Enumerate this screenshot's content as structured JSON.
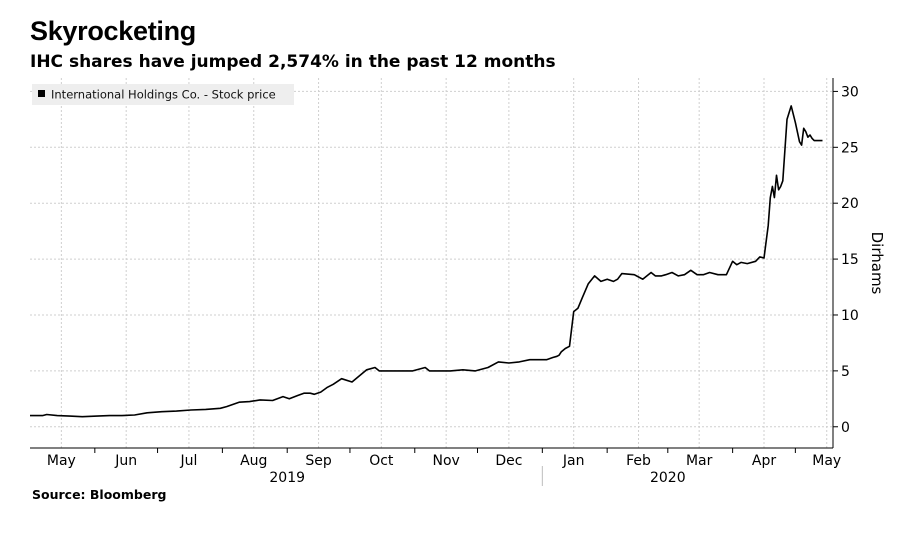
{
  "title": "Skyrocketing",
  "subtitle": "IHC shares have jumped 2,574% in the past 12 months",
  "source": "Source: Bloomberg",
  "chart_data": {
    "type": "line",
    "title": "Skyrocketing",
    "subtitle": "IHC shares have jumped 2,574% in the past 12 months",
    "ylabel": "Dirhams",
    "ylim": [
      -1.9,
      31.2
    ],
    "yticks": [
      0,
      5,
      10,
      15,
      20,
      25,
      30
    ],
    "grid": true,
    "legend": {
      "placement": "top-left",
      "entries": [
        "International Holdings Co. - Stock price"
      ]
    },
    "x_month_labels": [
      "May",
      "Jun",
      "Jul",
      "Aug",
      "Sep",
      "Oct",
      "Nov",
      "Dec",
      "Jan",
      "Feb",
      "Mar",
      "Apr",
      "May"
    ],
    "x_month_dates": [
      "2019-05-16",
      "2019-06-16",
      "2019-07-16",
      "2019-08-16",
      "2019-09-16",
      "2019-10-16",
      "2019-11-16",
      "2019-12-16",
      "2020-01-16",
      "2020-02-16",
      "2020-03-16",
      "2020-04-16",
      "2020-05-16"
    ],
    "year_labels": [
      "2019",
      "2020"
    ],
    "series": [
      {
        "name": "International Holdings Co. - Stock price",
        "x": [
          "2019-05-01",
          "2019-05-07",
          "2019-05-09",
          "2019-05-14",
          "2019-05-20",
          "2019-05-26",
          "2019-06-02",
          "2019-06-08",
          "2019-06-14",
          "2019-06-20",
          "2019-06-26",
          "2019-07-03",
          "2019-07-10",
          "2019-07-17",
          "2019-07-24",
          "2019-07-31",
          "2019-08-03",
          "2019-08-09",
          "2019-08-14",
          "2019-08-19",
          "2019-08-25",
          "2019-08-30",
          "2019-09-02",
          "2019-09-06",
          "2019-09-09",
          "2019-09-12",
          "2019-09-14",
          "2019-09-17",
          "2019-09-20",
          "2019-09-23",
          "2019-09-27",
          "2019-10-02",
          "2019-10-09",
          "2019-10-13",
          "2019-10-15",
          "2019-10-20",
          "2019-10-25",
          "2019-10-31",
          "2019-11-06",
          "2019-11-08",
          "2019-11-11",
          "2019-11-13",
          "2019-11-18",
          "2019-11-24",
          "2019-11-30",
          "2019-12-06",
          "2019-12-11",
          "2019-12-16",
          "2019-12-21",
          "2019-12-26",
          "2019-12-31",
          "2020-01-03",
          "2020-01-06",
          "2020-01-08",
          "2020-01-09",
          "2020-01-10",
          "2020-01-12",
          "2020-01-14",
          "2020-01-16",
          "2020-01-18",
          "2020-01-20",
          "2020-01-23",
          "2020-01-26",
          "2020-01-29",
          "2020-02-01",
          "2020-02-04",
          "2020-02-06",
          "2020-02-08",
          "2020-02-14",
          "2020-02-18",
          "2020-02-22",
          "2020-02-24",
          "2020-02-27",
          "2020-02-29",
          "2020-03-03",
          "2020-03-06",
          "2020-03-09",
          "2020-03-12",
          "2020-03-15",
          "2020-03-18",
          "2020-03-21",
          "2020-03-25",
          "2020-03-29",
          "2020-04-01",
          "2020-04-03",
          "2020-04-05",
          "2020-04-08",
          "2020-04-12",
          "2020-04-14",
          "2020-04-16",
          "2020-04-18",
          "2020-04-19",
          "2020-04-20",
          "2020-04-21",
          "2020-04-22",
          "2020-04-23",
          "2020-04-24",
          "2020-04-25",
          "2020-04-27",
          "2020-04-29",
          "2020-05-01",
          "2020-05-03",
          "2020-05-04",
          "2020-05-05",
          "2020-05-06",
          "2020-05-07",
          "2020-05-08",
          "2020-05-09",
          "2020-05-10",
          "2020-05-12",
          "2020-05-14"
        ],
        "values": [
          1.0,
          1.0,
          1.1,
          1.0,
          0.95,
          0.9,
          0.95,
          1.0,
          1.0,
          1.05,
          1.25,
          1.35,
          1.4,
          1.5,
          1.55,
          1.65,
          1.8,
          2.2,
          2.25,
          2.4,
          2.35,
          2.7,
          2.5,
          2.8,
          3.0,
          3.0,
          2.9,
          3.1,
          3.5,
          3.8,
          4.3,
          4.0,
          5.1,
          5.3,
          5.0,
          5.0,
          5.0,
          5.0,
          5.3,
          5.0,
          5.0,
          5.0,
          5.0,
          5.1,
          5.0,
          5.3,
          5.8,
          5.7,
          5.8,
          6.0,
          6.0,
          6.0,
          6.2,
          6.3,
          6.4,
          6.7,
          7.0,
          7.2,
          10.3,
          10.6,
          11.5,
          12.8,
          13.5,
          13.0,
          13.2,
          13.0,
          13.2,
          13.7,
          13.6,
          13.2,
          13.8,
          13.5,
          13.5,
          13.6,
          13.8,
          13.5,
          13.6,
          14.0,
          13.6,
          13.6,
          13.8,
          13.6,
          13.6,
          14.8,
          14.5,
          14.7,
          14.6,
          14.8,
          15.2,
          15.1,
          18.0,
          20.5,
          21.5,
          20.5,
          22.5,
          21.2,
          21.5,
          22.0,
          27.5,
          28.7,
          27.2,
          25.5,
          25.2,
          26.7,
          26.4,
          25.9,
          26.1,
          25.8,
          25.6,
          25.6,
          25.6
        ]
      }
    ]
  }
}
